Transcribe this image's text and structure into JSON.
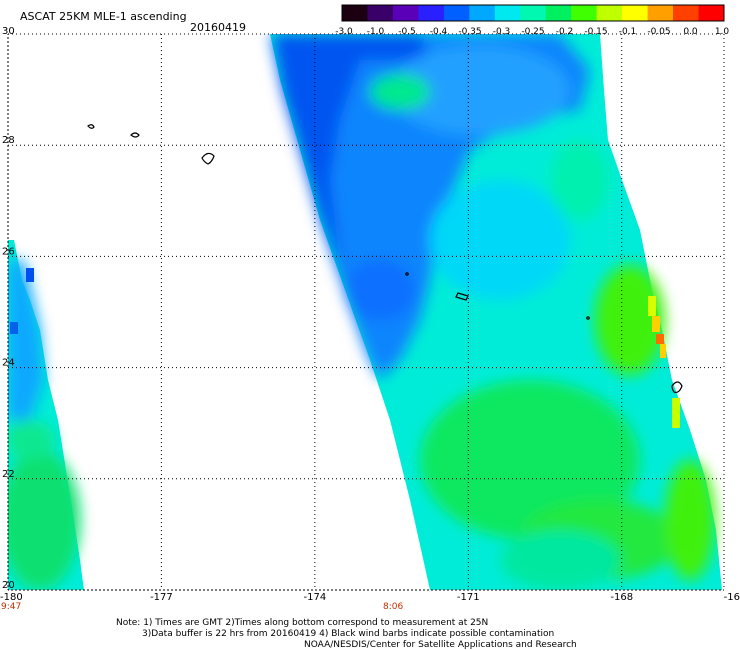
{
  "header": {
    "title": "ASCAT 25KM MLE-1 ascending",
    "date": "20160419"
  },
  "colorbar": {
    "labels": [
      "-3.0",
      "-1.0",
      "-0.5",
      "-0.4",
      "-0.35",
      "-0.3",
      "-0.25",
      "-0.2",
      "-0.15",
      "-0.1",
      "-0.05",
      "0.0",
      "1.0"
    ],
    "colors": [
      "#1a0010",
      "#3a006a",
      "#5a00b8",
      "#2a20ff",
      "#0060ff",
      "#00a8ff",
      "#00e8f0",
      "#00f8b0",
      "#00f060",
      "#40ff00",
      "#c0ff00",
      "#ffff00",
      "#ffa000",
      "#ff4000",
      "#ff0000"
    ]
  },
  "axes": {
    "x_ticks": [
      "-180",
      "-177",
      "-174",
      "-171",
      "-168",
      "-16"
    ],
    "y_ticks": [
      "30",
      "28",
      "26",
      "24",
      "22",
      "20"
    ]
  },
  "times": {
    "left": "9:47",
    "middle": "8:06"
  },
  "notes": {
    "line1": "Note: 1) Times are GMT 2)Times along bottom correspond to measurement at 25N",
    "line2": "3)Data buffer is 22 hrs from 20160419 4) Black wind barbs indicate possible contamination",
    "line3": "NOAA/NESDIS/Center for Satellite Applications and Research"
  },
  "chart_data": {
    "type": "heatmap",
    "title": "ASCAT 25KM MLE-1 ascending",
    "date": "20160419",
    "xlim": [
      -180,
      -166
    ],
    "ylim": [
      20,
      30
    ],
    "x_ticks": [
      -180,
      -177,
      -174,
      -171,
      -168
    ],
    "y_ticks": [
      20,
      22,
      24,
      26,
      28,
      30
    ],
    "value_scale": [
      -3.0,
      -1.0,
      -0.5,
      -0.4,
      -0.35,
      -0.3,
      -0.25,
      -0.2,
      -0.15,
      -0.1,
      -0.05,
      0.0,
      1.0
    ],
    "grid": true,
    "swaths": [
      {
        "time": "8:06"
      },
      {
        "time": "9:47"
      }
    ]
  }
}
